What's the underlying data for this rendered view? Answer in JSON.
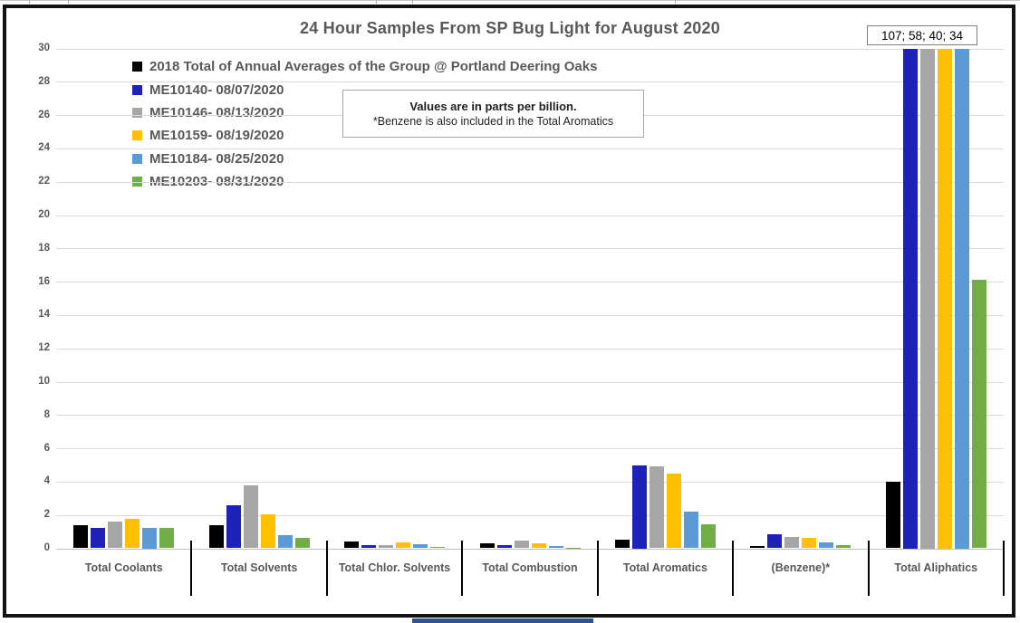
{
  "chart": {
    "title": "24 Hour Samples From SP Bug Light for August 2020",
    "values_note": {
      "line1": "Values are in parts per billion.",
      "line2": "*Benzene is also included in the Total Aromatics"
    },
    "offscale_label": "107; 58; 40; 34"
  },
  "colors": {
    "text_gray": "#595959",
    "gridline": "#d9d9d9",
    "axis_line": "#bfbfbf",
    "separator": "#000000",
    "note_border": "#a6a6a6",
    "bottom_strip": "#2f5496"
  },
  "chart_data": {
    "type": "bar",
    "title": "24 Hour Samples From SP Bug Light for August 2020",
    "xlabel": "",
    "ylabel": "",
    "units": "parts per billion",
    "ylim": [
      0,
      30
    ],
    "ytick_step": 2,
    "grid": true,
    "legend_position": "top-left-inside",
    "categories": [
      "Total Coolants",
      "Total Solvents",
      "Total Chlor. Solvents",
      "Total Combustion",
      "Total Aromatics",
      "(Benzene)*",
      "Total Aliphatics"
    ],
    "series": [
      {
        "name": "2018 Total of Annual Averages of the Group @ Portland Deering Oaks",
        "color": "#000000",
        "values": [
          1.4,
          1.4,
          0.4,
          0.3,
          0.5,
          0.15,
          4
        ]
      },
      {
        "name": "ME10140- 08/07/2020",
        "color": "#1e22b8",
        "values": [
          1.2,
          2.6,
          0.2,
          0.2,
          5,
          0.85,
          107
        ]
      },
      {
        "name": "ME10146- 08/13/2020",
        "color": "#a6a6a6",
        "values": [
          1.6,
          3.8,
          0.2,
          0.45,
          4.9,
          0.7,
          58
        ]
      },
      {
        "name": "ME10159- 08/19/2020",
        "color": "#ffc000",
        "values": [
          1.75,
          2.05,
          0.35,
          0.3,
          4.5,
          0.6,
          40
        ]
      },
      {
        "name": "ME10184- 08/25/2020",
        "color": "#5b9bd5",
        "values": [
          1.25,
          0.8,
          0.25,
          0.15,
          2.2,
          0.35,
          34
        ]
      },
      {
        "name": "ME10203- 08/31/2020",
        "color": "#70ad47",
        "values": [
          1.2,
          0.65,
          0.1,
          0.05,
          1.45,
          0.2,
          16.1
        ]
      }
    ],
    "clipped_note": {
      "category": "Total Aliphatics",
      "label": "107; 58; 40; 34",
      "clipped_series": [
        "ME10140- 08/07/2020",
        "ME10146- 08/13/2020",
        "ME10159- 08/19/2020",
        "ME10184- 08/25/2020"
      ]
    }
  }
}
